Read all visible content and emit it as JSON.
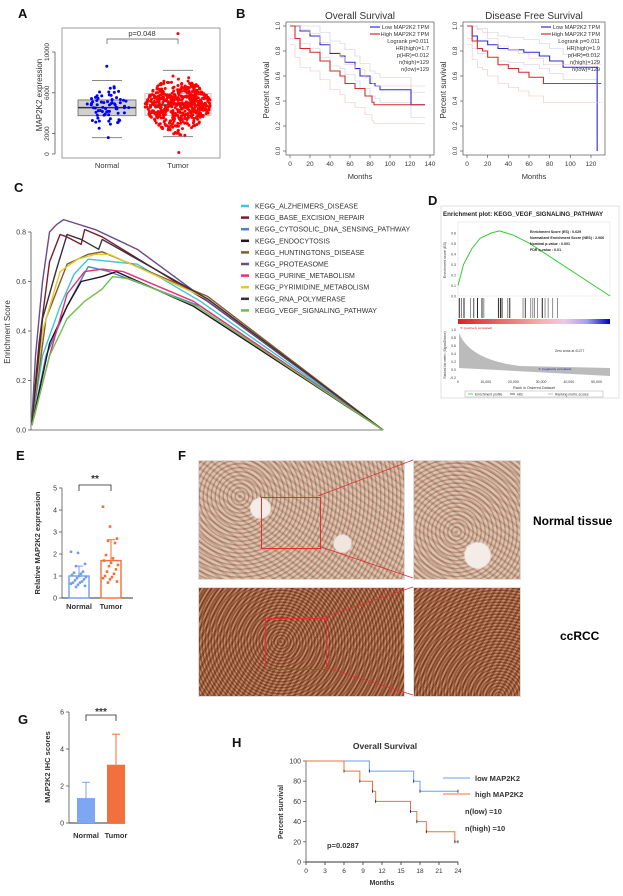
{
  "panels": {
    "A": "A",
    "B": "B",
    "C": "C",
    "D": "D",
    "E": "E",
    "F": "F",
    "G": "G",
    "H": "H"
  },
  "chart_data": [
    {
      "panel": "A",
      "type": "box-beeswarm",
      "ylabel": "MAP2K2 expression",
      "categories": [
        "Normal",
        "Tumor"
      ],
      "yticks": [
        0,
        2000,
        6000,
        10000
      ],
      "ylim": [
        0,
        12000
      ],
      "annotation": "p=0.048",
      "series": [
        {
          "category": "Normal",
          "color": "#0000ff",
          "n": 72,
          "median": 4550,
          "q1": 3750,
          "q3": 5300,
          "whisker_low": 1600,
          "whisker_high": 7200,
          "min": 1600,
          "max": 8600
        },
        {
          "category": "Tumor",
          "color": "#ff0000",
          "n": 530,
          "median": 4800,
          "q1": 3800,
          "q3": 5900,
          "whisker_low": 1700,
          "whisker_high": 8200,
          "min": 150,
          "max": 11800
        }
      ]
    },
    {
      "panel": "B-left",
      "type": "line",
      "title": "Overall Survival",
      "xlabel": "Months",
      "ylabel": "Percent survival",
      "xticks": [
        0,
        20,
        40,
        60,
        80,
        100,
        120,
        140
      ],
      "yticks": [
        0.0,
        0.2,
        0.4,
        0.6,
        0.8,
        1.0
      ],
      "xlim": [
        0,
        140
      ],
      "ylim": [
        0,
        1
      ],
      "legend": [
        "Low MAP2K2 TPM",
        "High MAP2K2 TPM",
        "Logrank p=0.011",
        "HR(high)=1.7",
        "p(HR)=0.012",
        "n(high)=129",
        "n(low)=129"
      ],
      "series": [
        {
          "name": "Low MAP2K2 TPM",
          "color": "#2b2bd6",
          "x": [
            0,
            10,
            20,
            30,
            40,
            50,
            55,
            65,
            70,
            80,
            85,
            90,
            120,
            121,
            135
          ],
          "y": [
            1,
            0.96,
            0.92,
            0.85,
            0.78,
            0.76,
            0.71,
            0.66,
            0.6,
            0.54,
            0.52,
            0.49,
            0.49,
            0.37,
            0.37
          ]
        },
        {
          "name": "High MAP2K2 TPM",
          "color": "#d62b2b",
          "x": [
            0,
            5,
            10,
            20,
            30,
            40,
            50,
            55,
            65,
            75,
            82,
            84,
            135
          ],
          "y": [
            1,
            0.9,
            0.82,
            0.79,
            0.72,
            0.64,
            0.6,
            0.54,
            0.5,
            0.44,
            0.39,
            0.37,
            0.37
          ]
        }
      ]
    },
    {
      "panel": "B-right",
      "type": "line",
      "title": "Disease Free Survival",
      "xlabel": "Months",
      "ylabel": "Percent survival",
      "xticks": [
        0,
        20,
        40,
        60,
        80,
        100,
        120
      ],
      "yticks": [
        0.0,
        0.2,
        0.4,
        0.6,
        0.8,
        1.0
      ],
      "xlim": [
        0,
        130
      ],
      "ylim": [
        0,
        1
      ],
      "legend": [
        "Low MAP2K2 TPM",
        "High MAP2K2 TPM",
        "Logrank p=0.011",
        "HR(high)=1.9",
        "p(HR)=0.012",
        "n(high)=129",
        "n(low)=129"
      ],
      "series": [
        {
          "name": "Low MAP2K2 TPM",
          "color": "#2b2bd6",
          "x": [
            0,
            5,
            10,
            20,
            30,
            40,
            55,
            70,
            80,
            93,
            125,
            126
          ],
          "y": [
            1,
            0.92,
            0.88,
            0.85,
            0.82,
            0.81,
            0.79,
            0.76,
            0.72,
            0.67,
            0.67,
            0.0
          ]
        },
        {
          "name": "High MAP2K2 TPM",
          "color": "#d62b2b",
          "x": [
            0,
            5,
            10,
            15,
            20,
            30,
            40,
            50,
            60,
            74,
            130
          ],
          "y": [
            1,
            0.88,
            0.82,
            0.8,
            0.75,
            0.69,
            0.66,
            0.63,
            0.59,
            0.54,
            0.54
          ]
        }
      ]
    },
    {
      "panel": "C",
      "type": "line",
      "ylabel": "Enrichment Score",
      "yticks": [
        0.0,
        0.2,
        0.4,
        0.6,
        0.8
      ],
      "ylim": [
        0,
        0.87
      ],
      "legend_position": "top-right",
      "series": [
        {
          "name": "KEGG_ALZHEIMERS_DISEASE",
          "color": "#3cc6d6",
          "x": [
            0,
            0.03,
            0.08,
            0.12,
            0.16,
            0.3,
            0.48,
            1
          ],
          "y": [
            0.03,
            0.3,
            0.5,
            0.63,
            0.69,
            0.67,
            0.52,
            0
          ]
        },
        {
          "name": "KEGG_BASE_EXCISION_REPAIR",
          "color": "#7a1c2e",
          "x": [
            0,
            0.02,
            0.05,
            0.08,
            0.1,
            0.14,
            0.15,
            0.2,
            0.5,
            1
          ],
          "y": [
            0.04,
            0.35,
            0.68,
            0.79,
            0.78,
            0.75,
            0.81,
            0.78,
            0.52,
            0
          ]
        },
        {
          "name": "KEGG_CYTOSOLIC_DNA_SENSING_PATHWAY",
          "color": "#4f7fc4",
          "x": [
            0,
            0.04,
            0.1,
            0.16,
            0.22,
            0.48,
            1
          ],
          "y": [
            0.02,
            0.3,
            0.5,
            0.66,
            0.64,
            0.5,
            0
          ]
        },
        {
          "name": "KEGG_ENDOCYTOSIS",
          "color": "#231228",
          "x": [
            0,
            0.05,
            0.1,
            0.14,
            0.2,
            0.24,
            0.46,
            1
          ],
          "y": [
            0.02,
            0.35,
            0.5,
            0.6,
            0.62,
            0.64,
            0.5,
            0
          ]
        },
        {
          "name": "KEGG_HUNTINGTONS_DISEASE",
          "color": "#8a5a2a",
          "x": [
            0,
            0.04,
            0.1,
            0.16,
            0.2,
            0.5,
            1
          ],
          "y": [
            0.03,
            0.45,
            0.67,
            0.71,
            0.72,
            0.54,
            0
          ]
        },
        {
          "name": "KEGG_PROTEASOME",
          "color": "#6a4a8a",
          "x": [
            0,
            0.01,
            0.03,
            0.05,
            0.07,
            0.09,
            0.18,
            0.3,
            1
          ],
          "y": [
            0.05,
            0.3,
            0.6,
            0.8,
            0.83,
            0.85,
            0.81,
            0.73,
            0
          ]
        },
        {
          "name": "KEGG_PURINE_METABOLISM",
          "color": "#e8307a",
          "x": [
            0,
            0.05,
            0.1,
            0.15,
            0.2,
            0.26,
            0.46,
            1
          ],
          "y": [
            0.02,
            0.3,
            0.55,
            0.64,
            0.65,
            0.64,
            0.52,
            0
          ]
        },
        {
          "name": "KEGG_PYRIMIDINE_METABOLISM",
          "color": "#e3c832",
          "x": [
            0,
            0.03,
            0.08,
            0.13,
            0.18,
            0.22,
            0.5,
            1
          ],
          "y": [
            0.03,
            0.4,
            0.64,
            0.69,
            0.71,
            0.71,
            0.53,
            0
          ]
        },
        {
          "name": "KEGG_RNA_POLYMERASE",
          "color": "#3a2e3a",
          "x": [
            0,
            0.03,
            0.07,
            0.1,
            0.14,
            0.19,
            0.2,
            0.5,
            1
          ],
          "y": [
            0.03,
            0.45,
            0.65,
            0.79,
            0.77,
            0.73,
            0.77,
            0.53,
            0
          ]
        },
        {
          "name": "KEGG_VEGF_SIGNALING_PATHWAY",
          "color": "#6cc04a",
          "x": [
            0,
            0.05,
            0.1,
            0.15,
            0.2,
            0.23,
            0.28,
            0.47,
            1
          ],
          "y": [
            0.02,
            0.3,
            0.45,
            0.52,
            0.57,
            0.62,
            0.61,
            0.5,
            0
          ]
        }
      ]
    },
    {
      "panel": "D",
      "type": "line",
      "title": "Enrichment plot: KEGG_VEGF_SIGNALING_PATHWAY",
      "ylabel": "Enrichment score (ES)",
      "ylabel2": "Ranked list metric (Signal2Noise)",
      "xlabel": "Rank in Ordered Dataset",
      "xticks": [
        "0",
        "10,000",
        "20,000",
        "30,000",
        "40,000",
        "50,000"
      ],
      "yticks": [
        "0.0",
        "0.1",
        "0.2",
        "0.3",
        "0.4",
        "0.5",
        "0.6"
      ],
      "yticks2": [
        "-0.2",
        "0.0",
        "0.2",
        "0.4",
        "0.6",
        "0.8",
        "1.0"
      ],
      "stats": [
        "Enrichment Score (ES) : 0.629",
        "Normalized Enrichment Score (NES) : 2.066",
        "Nominal p-value : 0.001",
        "FDR q-value : 0.01"
      ],
      "pos_label": "'0' (positively correlated)",
      "neg_label": "'1' (negatively correlated)",
      "zero_cross": "Zero cross at 41277",
      "legend": [
        "Enrichment profile",
        "Hits",
        "Ranking metric scores"
      ],
      "x": [
        0,
        2000,
        5000,
        8000,
        12000,
        15000,
        20000,
        26000,
        55000
      ],
      "y": [
        0.1,
        0.3,
        0.45,
        0.55,
        0.6,
        0.62,
        0.58,
        0.5,
        0.0
      ],
      "color": "#33cc33"
    },
    {
      "panel": "E",
      "type": "bar-scatter",
      "ylabel": "Relative MAP2K2 expression",
      "categories": [
        "Normal",
        "Tumor"
      ],
      "yticks": [
        0,
        1,
        2,
        3,
        4,
        5
      ],
      "ylim": [
        0,
        5
      ],
      "annotation": "**",
      "series": [
        {
          "category": "Normal",
          "color": "#6f9cf0",
          "mean": 1.0,
          "sd": 0.45,
          "values": [
            2.1,
            2.05,
            1.55,
            1.45,
            1.2,
            1.15,
            1.1,
            1.05,
            1.0,
            0.95,
            0.9,
            0.85,
            0.8,
            0.75,
            0.7,
            0.7,
            0.65,
            0.6,
            0.55,
            0.5
          ]
        },
        {
          "category": "Tumor",
          "color": "#f0703a",
          "mean": 1.7,
          "sd": 0.95,
          "values": [
            4.15,
            3.25,
            2.7,
            2.6,
            2.5,
            1.95,
            1.8,
            1.7,
            1.6,
            1.5,
            1.45,
            1.3,
            1.2,
            1.1,
            1.0,
            0.95,
            0.9,
            0.85,
            0.75,
            0.7
          ]
        }
      ]
    },
    {
      "panel": "G",
      "type": "bar",
      "ylabel": "MAP2K2 IHC scores",
      "categories": [
        "Normal",
        "Tumor"
      ],
      "values": [
        1.35,
        3.15
      ],
      "errors": [
        0.85,
        1.65
      ],
      "colors": [
        "#7ea6f2",
        "#f2703e"
      ],
      "yticks": [
        0,
        2,
        4,
        6
      ],
      "ylim": [
        0,
        6
      ],
      "annotation": "***"
    },
    {
      "panel": "H",
      "type": "line",
      "title": "Overall Survival",
      "xlabel": "Months",
      "ylabel": "Percent survival",
      "xticks": [
        0,
        3,
        6,
        9,
        12,
        15,
        18,
        21,
        24
      ],
      "yticks": [
        0,
        20,
        40,
        60,
        80,
        100
      ],
      "xlim": [
        0,
        24
      ],
      "ylim": [
        0,
        100
      ],
      "annotation": "p=0.0287",
      "n_low": "n(low) =10",
      "n_high": "n(high) =10",
      "series": [
        {
          "name": "low  MAP2K2",
          "color": "#6f9cf0",
          "x": [
            0,
            10,
            17,
            18,
            24
          ],
          "y": [
            100,
            90,
            80,
            70,
            70
          ]
        },
        {
          "name": "high MAP2K2",
          "color": "#f0703a",
          "x": [
            0,
            6,
            8.5,
            10.5,
            11,
            16.5,
            17.5,
            19,
            23.5,
            24
          ],
          "y": [
            100,
            90,
            80,
            70,
            60,
            50,
            40,
            30,
            20,
            20
          ]
        }
      ]
    }
  ],
  "F": {
    "normal_label": "Normal tissue",
    "tumor_label": "ccRCC"
  }
}
